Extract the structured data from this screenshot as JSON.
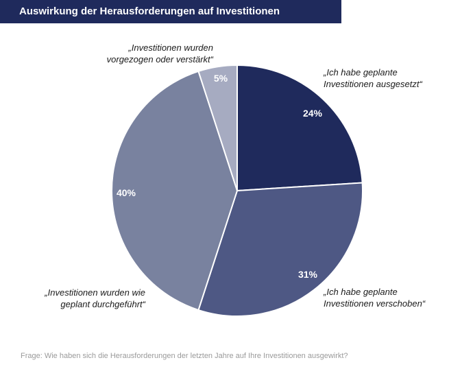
{
  "title": "Auswirkung der Herausforderungen auf Investitionen",
  "footnote": "Frage: Wie haben sich die Herausforderungen der letzten Jahre auf Ihre Investitionen ausgewirkt?",
  "chart_data": {
    "type": "pie",
    "start_angle_deg": 0,
    "direction": "clockwise",
    "slices": [
      {
        "label_lines": [
          "„Ich habe geplante",
          "Investitionen ausgesetzt“"
        ],
        "value": 24,
        "value_label": "24%",
        "color": "#1f2a5c"
      },
      {
        "label_lines": [
          "„Ich habe geplante",
          "Investitionen verschoben“"
        ],
        "value": 31,
        "value_label": "31%",
        "color": "#4e5884"
      },
      {
        "label_lines": [
          "„Investitionen wurden wie",
          "geplant durchgeführt“"
        ],
        "value": 40,
        "value_label": "40%",
        "color": "#79829f"
      },
      {
        "label_lines": [
          "„Investitionen wurden",
          "vorgezogen oder verstärkt“"
        ],
        "value": 5,
        "value_label": "5%",
        "color": "#a6abc1"
      }
    ]
  }
}
